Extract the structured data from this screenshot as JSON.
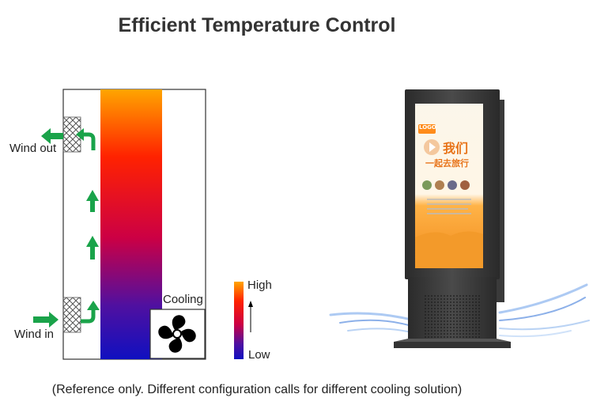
{
  "title": "Efficient Temperature Control",
  "diagram": {
    "wind_out_label": "Wind out",
    "wind_in_label": "Wind in",
    "cooling_label": "Cooling",
    "legend": {
      "high_label": "High",
      "low_label": "Low"
    },
    "colors": {
      "hot": "#ffa500",
      "warm": "#ff2200",
      "mid": "#cc0044",
      "cool": "#5010a0",
      "cold": "#1010c0",
      "arrow": "#1aa34a"
    }
  },
  "kiosk": {
    "screen_logo": "LOGO",
    "screen_heading_1": "我们",
    "screen_heading_2": "一起去旅行"
  },
  "footnote": "(Reference only. Different configuration calls for different cooling solution)"
}
